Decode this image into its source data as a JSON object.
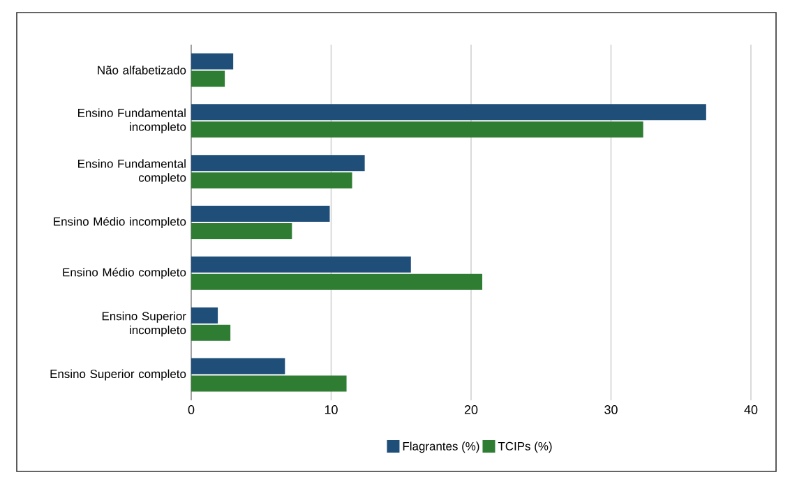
{
  "chart_data": {
    "type": "bar",
    "orientation": "horizontal",
    "categories": [
      "Não alfabetizado",
      "Ensino Fundamental incompleto",
      "Ensino Fundamental completo",
      "Ensino Médio incompleto",
      "Ensino Médio completo",
      "Ensino Superior incompleto",
      "Ensino Superior completo"
    ],
    "series": [
      {
        "name": "Flagrantes (%)",
        "color": "#1f4e79",
        "values": [
          3.0,
          36.8,
          12.4,
          9.9,
          15.7,
          1.9,
          6.7
        ]
      },
      {
        "name": "TCIPs (%)",
        "color": "#2e7d32",
        "values": [
          2.4,
          32.3,
          11.5,
          7.2,
          20.8,
          2.8,
          11.1
        ]
      }
    ],
    "xlim": [
      0,
      40
    ],
    "xticks": [
      0,
      10,
      20,
      30,
      40
    ],
    "grid": "x",
    "legend": "bottom"
  }
}
